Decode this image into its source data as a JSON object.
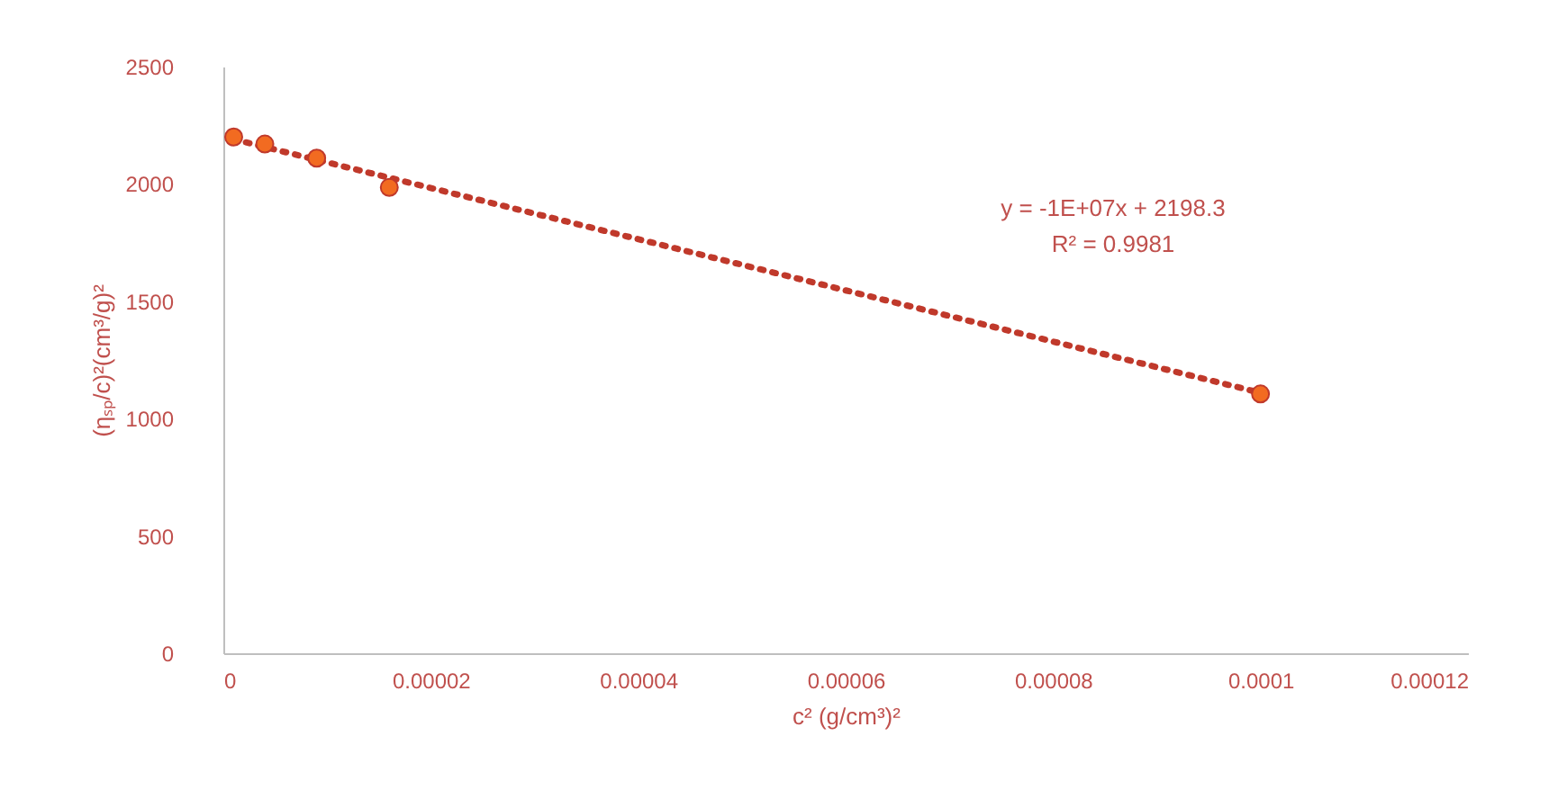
{
  "chart_data": {
    "type": "scatter",
    "xlabel": "c² (g/cm³)²",
    "ylabel": "(ηₛₚ/c)²(cm³/g)²",
    "xlim": [
      0,
      0.00012
    ],
    "xticks": [
      {
        "value": 0,
        "label": "0"
      },
      {
        "value": 2e-05,
        "label": "0.00002"
      },
      {
        "value": 4e-05,
        "label": "0.00004"
      },
      {
        "value": 6e-05,
        "label": "0.00006"
      },
      {
        "value": 8e-05,
        "label": "0.00008"
      },
      {
        "value": 0.0001,
        "label": "0.0001"
      },
      {
        "value": 0.00012,
        "label": "0.00012"
      }
    ],
    "ylim": [
      0,
      2500
    ],
    "yticks": [
      0,
      500,
      1000,
      1500,
      2000,
      2500
    ],
    "grid": false,
    "series": [
      {
        "type": "line",
        "color": "#c0392b",
        "line_style": "dotted",
        "marker": "none",
        "x": [
          1e-06,
          0.0001
        ],
        "values": [
          2190,
          1110
        ]
      },
      {
        "color": "#f26b21",
        "marker": "circle",
        "x": [
          1e-06,
          4e-06,
          9e-06,
          1.6e-05,
          0.0001
        ],
        "values": [
          2200,
          2170,
          2110,
          1985,
          1105
        ]
      }
    ],
    "annotations": [
      "y = -1E+07x + 2198.3",
      "R² = 0.9981"
    ]
  }
}
